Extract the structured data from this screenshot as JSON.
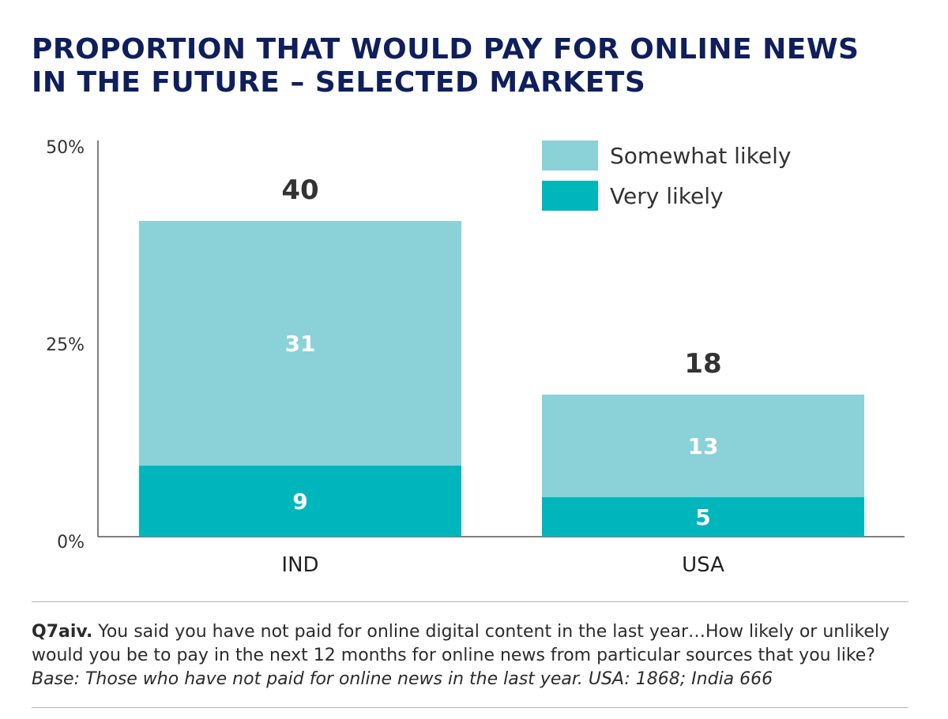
{
  "title_lines": [
    "PROPORTION THAT WOULD PAY FOR ONLINE NEWS",
    "IN THE FUTURE – SELECTED MARKETS"
  ],
  "chart_data": {
    "type": "bar",
    "stacked": true,
    "categories": [
      "IND",
      "USA"
    ],
    "series": [
      {
        "name": "Very likely",
        "values": [
          9,
          5
        ],
        "color": "#00b6bd"
      },
      {
        "name": "Somewhat likely",
        "values": [
          31,
          13
        ],
        "color": "#8ad1d8"
      }
    ],
    "totals": [
      40,
      18
    ],
    "ylim": [
      0,
      50
    ],
    "yticks": [
      "0%",
      "25%",
      "50%"
    ],
    "ytick_values": [
      0,
      25,
      50
    ],
    "legend_order": [
      "Somewhat likely",
      "Very likely"
    ],
    "legend_position": "top-right",
    "grid": false
  },
  "footnote": {
    "qid": "Q7aiv.",
    "text": " You said you have not paid for online digital content in the last year…How likely or unlikely would you be to pay in the next 12 months for online news from particular sources that you like? ",
    "base": "Base: Those who have not paid for online news in the last year. USA: 1868; India 666"
  }
}
